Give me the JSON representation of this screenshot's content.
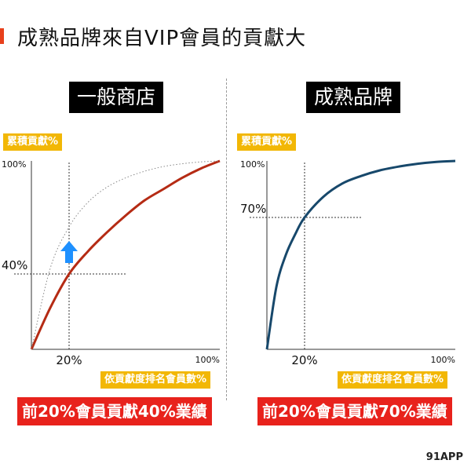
{
  "title": "成熟品牌來自VIP會員的貢獻大",
  "colors": {
    "accent": "#e8401c",
    "badge": "#f2b705",
    "conclusion": "#e8221c",
    "arrow": "#1e90ff",
    "general_curve": "#b52b14",
    "mature_curve": "#17486b",
    "reference_curve": "#888888",
    "guide_line": "#333333"
  },
  "chart_data": [
    {
      "type": "line",
      "title": "一般商店",
      "xlabel": "依貢獻度排名會員數%",
      "ylabel": "累積貢獻%",
      "xlim": [
        0,
        100
      ],
      "ylim": [
        0,
        100
      ],
      "x_ticks": [
        {
          "value": 20,
          "label": "20%"
        },
        {
          "value": 100,
          "label": "100%"
        }
      ],
      "y_ticks": [
        {
          "value": 40,
          "label": "40%"
        },
        {
          "value": 100,
          "label": "100%"
        }
      ],
      "series": [
        {
          "role": "actual",
          "x": [
            0,
            10,
            20,
            30,
            40,
            50,
            60,
            70,
            80,
            90,
            100
          ],
          "y": [
            0,
            22,
            40,
            52,
            62,
            71,
            79,
            85,
            91,
            96,
            100
          ]
        },
        {
          "role": "reference",
          "style": "dotted",
          "x": [
            0,
            10,
            20,
            30,
            40,
            50,
            60,
            70,
            80,
            90,
            100
          ],
          "y": [
            0,
            43,
            65,
            78,
            86,
            91,
            94.5,
            97,
            98.5,
            99.5,
            100
          ]
        }
      ],
      "highlight": {
        "x": 20,
        "y": 40
      },
      "annotation": "up-arrow-icon",
      "conclusion": "前20%會員貢獻40%業績"
    },
    {
      "type": "line",
      "title": "成熟品牌",
      "xlabel": "依貢獻度排名會員數%",
      "ylabel": "累積貢獻%",
      "xlim": [
        0,
        100
      ],
      "ylim": [
        0,
        100
      ],
      "x_ticks": [
        {
          "value": 20,
          "label": "20%"
        },
        {
          "value": 100,
          "label": "100%"
        }
      ],
      "y_ticks": [
        {
          "value": 70,
          "label": "70%"
        },
        {
          "value": 100,
          "label": "100%"
        }
      ],
      "series": [
        {
          "role": "actual",
          "x": [
            0,
            5,
            10,
            15,
            20,
            30,
            40,
            50,
            60,
            70,
            80,
            90,
            100
          ],
          "y": [
            0,
            33,
            50,
            61,
            70,
            81,
            88,
            92,
            95,
            97,
            98.5,
            99.5,
            100
          ]
        }
      ],
      "highlight": {
        "x": 20,
        "y": 70
      },
      "conclusion": "前20%會員貢獻70%業績"
    }
  ],
  "logo": "91APP"
}
